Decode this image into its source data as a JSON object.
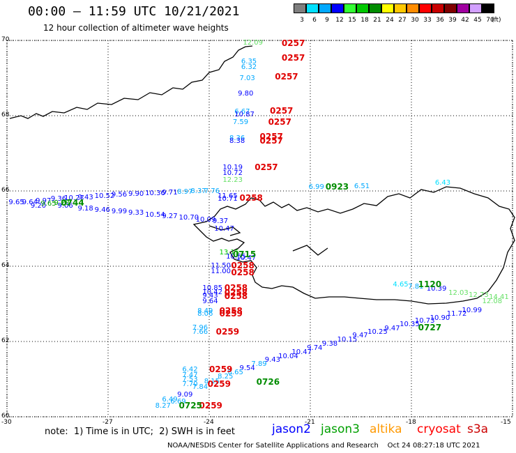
{
  "header": {
    "title": "00:00 – 11:59 UTC 10/21/2021",
    "subtitle": "12 hour collection of altimeter wave heights"
  },
  "color_scale": {
    "unit": "(ft)",
    "bins": [
      {
        "label": "3",
        "color": "#7f7f7f"
      },
      {
        "label": "6",
        "color": "#00e0ff"
      },
      {
        "label": "9",
        "color": "#00a8ff"
      },
      {
        "label": "12",
        "color": "#0000ff"
      },
      {
        "label": "15",
        "color": "#33ff33"
      },
      {
        "label": "18",
        "color": "#00c800"
      },
      {
        "label": "21",
        "color": "#008c00"
      },
      {
        "label": "24",
        "color": "#ffff00"
      },
      {
        "label": "27",
        "color": "#ffc800"
      },
      {
        "label": "30",
        "color": "#ff8c00"
      },
      {
        "label": "33",
        "color": "#ff0000"
      },
      {
        "label": "36",
        "color": "#c80000"
      },
      {
        "label": "39",
        "color": "#800000"
      },
      {
        "label": "42",
        "color": "#a000a0"
      },
      {
        "label": "45",
        "color": "#d2a0ff"
      },
      {
        "label": "70",
        "color": "#000000"
      }
    ]
  },
  "axes": {
    "lat_labels": [
      "70",
      "68",
      "66",
      "64",
      "62",
      "60"
    ],
    "lon_labels": [
      "-30",
      "-27",
      "-24",
      "-21",
      "-18",
      "-15"
    ]
  },
  "footer": {
    "note": "note:  1) Time is in UTC;  2) SWH is in feet",
    "legend": [
      {
        "name": "jason2",
        "color": "#0000ff"
      },
      {
        "name": "jason3",
        "color": "#00a000"
      },
      {
        "name": "altika",
        "color": "#ff9900"
      },
      {
        "name": "cryosat",
        "color": "#ff0000"
      },
      {
        "name": "s3a",
        "color": "#cc0000"
      }
    ],
    "credit": "NOAA/NESDIS Center for Satellite Applications and Research    Oct 24 08:27:18 UTC 2021"
  },
  "observations": [
    {
      "t": "12.09",
      "c": "#66e066",
      "lon": -23.0,
      "lat": 69.93
    },
    {
      "t": "6.35",
      "c": "#00a8ff",
      "lon": -23.05,
      "lat": 69.43
    },
    {
      "t": "6.32",
      "c": "#00a8ff",
      "lon": -23.05,
      "lat": 69.28
    },
    {
      "t": "7.03",
      "c": "#00a8ff",
      "lon": -23.1,
      "lat": 68.98
    },
    {
      "t": "9.80",
      "c": "#0000ff",
      "lon": -23.15,
      "lat": 68.58
    },
    {
      "t": "6.67",
      "c": "#00a8ff",
      "lon": -23.25,
      "lat": 68.1
    },
    {
      "t": "10.87",
      "c": "#0000ff",
      "lon": -23.25,
      "lat": 68.01
    },
    {
      "t": "7.59",
      "c": "#00a8ff",
      "lon": -23.3,
      "lat": 67.82
    },
    {
      "t": "8.36",
      "c": "#00a8ff",
      "lon": -23.4,
      "lat": 67.38
    },
    {
      "t": "8.38",
      "c": "#0000ff",
      "lon": -23.4,
      "lat": 67.32
    },
    {
      "t": "10.19",
      "c": "#0000ff",
      "lon": -23.6,
      "lat": 66.62
    },
    {
      "t": "10.72",
      "c": "#0000ff",
      "lon": -23.6,
      "lat": 66.47
    },
    {
      "t": "12.23",
      "c": "#66e066",
      "lon": -23.6,
      "lat": 66.27
    },
    {
      "t": "11.65",
      "c": "#0000ff",
      "lon": -23.75,
      "lat": 65.85
    },
    {
      "t": "10.71",
      "c": "#0000ff",
      "lon": -23.75,
      "lat": 65.78
    },
    {
      "t": "10.47",
      "c": "#0000ff",
      "lon": -23.85,
      "lat": 64.98
    },
    {
      "t": "13.15",
      "c": "#00c800",
      "lon": -23.7,
      "lat": 64.35
    },
    {
      "t": "10.55",
      "c": "#0000ff",
      "lon": -23.5,
      "lat": 64.25
    },
    {
      "t": "10.47",
      "c": "#0000ff",
      "lon": -23.2,
      "lat": 64.2
    },
    {
      "t": "11.50",
      "c": "#0000ff",
      "lon": -23.95,
      "lat": 64.0
    },
    {
      "t": "11.00",
      "c": "#0000ff",
      "lon": -23.95,
      "lat": 63.85
    },
    {
      "t": "10.85",
      "c": "#0000ff",
      "lon": -24.2,
      "lat": 63.4
    },
    {
      "t": "10.42",
      "c": "#0000ff",
      "lon": -24.2,
      "lat": 63.3
    },
    {
      "t": "9.43",
      "c": "#0000ff",
      "lon": -24.2,
      "lat": 63.2
    },
    {
      "t": "9.64",
      "c": "#0000ff",
      "lon": -24.2,
      "lat": 63.05
    },
    {
      "t": "8.49",
      "c": "#00a8ff",
      "lon": -24.35,
      "lat": 62.8
    },
    {
      "t": "8.06",
      "c": "#00a8ff",
      "lon": -24.35,
      "lat": 62.72
    },
    {
      "t": "7.96",
      "c": "#00a8ff",
      "lon": -24.5,
      "lat": 62.35
    },
    {
      "t": "7.66",
      "c": "#00a8ff",
      "lon": -24.5,
      "lat": 62.25
    },
    {
      "t": "6.42",
      "c": "#00a8ff",
      "lon": -24.8,
      "lat": 61.25
    },
    {
      "t": "7.47",
      "c": "#00a8ff",
      "lon": -24.8,
      "lat": 61.1
    },
    {
      "t": "7.53",
      "c": "#00a8ff",
      "lon": -24.8,
      "lat": 60.98
    },
    {
      "t": "7.70",
      "c": "#00a8ff",
      "lon": -24.8,
      "lat": 60.85
    },
    {
      "t": "9.09",
      "c": "#0000ff",
      "lon": -24.95,
      "lat": 60.58
    },
    {
      "t": "6.49",
      "c": "#00a8ff",
      "lon": -25.4,
      "lat": 60.45
    },
    {
      "t": "6.69",
      "c": "#00a8ff",
      "lon": -25.15,
      "lat": 60.38
    },
    {
      "t": "8.27",
      "c": "#00a8ff",
      "lon": -25.6,
      "lat": 60.28
    },
    {
      "t": "9.65",
      "c": "#0000ff",
      "lon": -29.95,
      "lat": 65.68
    },
    {
      "t": "9.64",
      "c": "#0000ff",
      "lon": -29.55,
      "lat": 65.68
    },
    {
      "t": "9.97",
      "c": "#0000ff",
      "lon": -29.15,
      "lat": 65.72
    },
    {
      "t": "9.36",
      "c": "#0000ff",
      "lon": -28.7,
      "lat": 65.78
    },
    {
      "t": "10.27",
      "c": "#0000ff",
      "lon": -28.3,
      "lat": 65.8
    },
    {
      "t": "9.43",
      "c": "#0000ff",
      "lon": -27.9,
      "lat": 65.82
    },
    {
      "t": "10.52",
      "c": "#0000ff",
      "lon": -27.4,
      "lat": 65.85
    },
    {
      "t": "9.56",
      "c": "#0000ff",
      "lon": -26.9,
      "lat": 65.88
    },
    {
      "t": "9.90",
      "c": "#0000ff",
      "lon": -26.4,
      "lat": 65.9
    },
    {
      "t": "10.36",
      "c": "#0000ff",
      "lon": -25.9,
      "lat": 65.93
    },
    {
      "t": "9.71",
      "c": "#0000ff",
      "lon": -25.4,
      "lat": 65.95
    },
    {
      "t": "8.97",
      "c": "#00a8ff",
      "lon": -24.95,
      "lat": 65.97
    },
    {
      "t": "8.37",
      "c": "#00a8ff",
      "lon": -24.55,
      "lat": 65.98
    },
    {
      "t": "7.76",
      "c": "#00a8ff",
      "lon": -24.15,
      "lat": 65.98
    },
    {
      "t": "9.20",
      "c": "#0000ff",
      "lon": -29.3,
      "lat": 65.6
    },
    {
      "t": "9.06",
      "c": "#0000ff",
      "lon": -28.5,
      "lat": 65.6
    },
    {
      "t": "9.18",
      "c": "#0000ff",
      "lon": -27.9,
      "lat": 65.52
    },
    {
      "t": "9.46",
      "c": "#0000ff",
      "lon": -27.4,
      "lat": 65.48
    },
    {
      "t": "9.99",
      "c": "#0000ff",
      "lon": -26.9,
      "lat": 65.44
    },
    {
      "t": "9.33",
      "c": "#0000ff",
      "lon": -26.4,
      "lat": 65.4
    },
    {
      "t": "10.54",
      "c": "#0000ff",
      "lon": -25.9,
      "lat": 65.36
    },
    {
      "t": "9.27",
      "c": "#0000ff",
      "lon": -25.4,
      "lat": 65.32
    },
    {
      "t": "10.70",
      "c": "#0000ff",
      "lon": -24.9,
      "lat": 65.28
    },
    {
      "t": "10.09",
      "c": "#0000ff",
      "lon": -24.4,
      "lat": 65.23
    },
    {
      "t": "9.37",
      "c": "#0000ff",
      "lon": -23.9,
      "lat": 65.18
    },
    {
      "t": "9.65",
      "c": "#00a000",
      "lon": -29.0,
      "lat": 65.64
    },
    {
      "t": "9.28",
      "c": "#00a000",
      "lon": -28.6,
      "lat": 65.66
    },
    {
      "t": "6.99",
      "c": "#00a8ff",
      "lon": -21.05,
      "lat": 66.1
    },
    {
      "t": "6.51",
      "c": "#00a8ff",
      "lon": -19.7,
      "lat": 66.12
    },
    {
      "t": "6.43",
      "c": "#00e0ff",
      "lon": -17.3,
      "lat": 66.2
    },
    {
      "t": "4.65",
      "c": "#00e0ff",
      "lon": -18.55,
      "lat": 63.5
    },
    {
      "t": "7.81",
      "c": "#00a8ff",
      "lon": -18.1,
      "lat": 63.44
    },
    {
      "t": "10.39",
      "c": "#0000ff",
      "lon": -17.55,
      "lat": 63.38
    },
    {
      "t": "12.03",
      "c": "#66e066",
      "lon": -16.9,
      "lat": 63.28
    },
    {
      "t": "12.73",
      "c": "#66e066",
      "lon": -16.3,
      "lat": 63.22
    },
    {
      "t": "14.41",
      "c": "#66e066",
      "lon": -15.7,
      "lat": 63.17
    },
    {
      "t": "12.08",
      "c": "#66e066",
      "lon": -15.9,
      "lat": 63.05
    },
    {
      "t": "10.99",
      "c": "#0000ff",
      "lon": -16.5,
      "lat": 62.82
    },
    {
      "t": "11.72",
      "c": "#0000ff",
      "lon": -16.95,
      "lat": 62.72
    },
    {
      "t": "10.90",
      "c": "#0000ff",
      "lon": -17.45,
      "lat": 62.62
    },
    {
      "t": "10.73",
      "c": "#0000ff",
      "lon": -17.9,
      "lat": 62.54
    },
    {
      "t": "10.35",
      "c": "#0000ff",
      "lon": -18.35,
      "lat": 62.44
    },
    {
      "t": "9.47",
      "c": "#0000ff",
      "lon": -18.8,
      "lat": 62.34
    },
    {
      "t": "10.25",
      "c": "#0000ff",
      "lon": -19.3,
      "lat": 62.24
    },
    {
      "t": "9.47",
      "c": "#0000ff",
      "lon": -19.75,
      "lat": 62.14
    },
    {
      "t": "10.15",
      "c": "#0000ff",
      "lon": -20.2,
      "lat": 62.04
    },
    {
      "t": "9.38",
      "c": "#0000ff",
      "lon": -20.65,
      "lat": 61.92
    },
    {
      "t": "9.74",
      "c": "#0000ff",
      "lon": -21.1,
      "lat": 61.82
    },
    {
      "t": "10.47",
      "c": "#0000ff",
      "lon": -21.55,
      "lat": 61.7
    },
    {
      "t": "10.04",
      "c": "#0000ff",
      "lon": -21.95,
      "lat": 61.6
    },
    {
      "t": "9.43",
      "c": "#0000ff",
      "lon": -22.35,
      "lat": 61.5
    },
    {
      "t": "7.89",
      "c": "#00a8ff",
      "lon": -22.75,
      "lat": 61.38
    },
    {
      "t": "9.54",
      "c": "#0000ff",
      "lon": -23.1,
      "lat": 61.28
    },
    {
      "t": "8.65",
      "c": "#00a8ff",
      "lon": -23.45,
      "lat": 61.16
    },
    {
      "t": "8.25",
      "c": "#00a8ff",
      "lon": -23.75,
      "lat": 61.06
    },
    {
      "t": "8.15",
      "c": "#00a8ff",
      "lon": -24.15,
      "lat": 60.92
    },
    {
      "t": "7.84",
      "c": "#00a8ff",
      "lon": -24.5,
      "lat": 60.78
    },
    {
      "t": "0257",
      "c": "#e00000",
      "lon": -21.85,
      "lat": 69.9,
      "time": true
    },
    {
      "t": "0257",
      "c": "#e00000",
      "lon": -21.85,
      "lat": 69.52,
      "time": true
    },
    {
      "t": "0257",
      "c": "#e00000",
      "lon": -22.05,
      "lat": 69.02,
      "time": true
    },
    {
      "t": "0257",
      "c": "#e00000",
      "lon": -22.2,
      "lat": 68.12,
      "time": true
    },
    {
      "t": "0257",
      "c": "#e00000",
      "lon": -22.25,
      "lat": 67.82,
      "time": true
    },
    {
      "t": "0257",
      "c": "#e00000",
      "lon": -22.5,
      "lat": 67.42,
      "time": true
    },
    {
      "t": "0257",
      "c": "#e00000",
      "lon": -22.5,
      "lat": 67.32,
      "time": true
    },
    {
      "t": "0257",
      "c": "#e00000",
      "lon": -22.65,
      "lat": 66.62,
      "time": true
    },
    {
      "t": "0258",
      "c": "#e00000",
      "lon": -23.1,
      "lat": 65.8,
      "time": true
    },
    {
      "t": "0258",
      "c": "#e00000",
      "lon": -23.35,
      "lat": 64.0,
      "time": true
    },
    {
      "t": "0258",
      "c": "#e00000",
      "lon": -23.35,
      "lat": 63.82,
      "time": true
    },
    {
      "t": "0258",
      "c": "#e00000",
      "lon": -23.55,
      "lat": 63.4,
      "time": true
    },
    {
      "t": "0258",
      "c": "#e00000",
      "lon": -23.55,
      "lat": 63.28,
      "time": true
    },
    {
      "t": "0258",
      "c": "#e00000",
      "lon": -23.55,
      "lat": 63.18,
      "time": true
    },
    {
      "t": "0258",
      "c": "#e00000",
      "lon": -23.7,
      "lat": 62.8,
      "time": true
    },
    {
      "t": "0259",
      "c": "#e00000",
      "lon": -23.7,
      "lat": 62.72,
      "time": true
    },
    {
      "t": "0259",
      "c": "#e00000",
      "lon": -23.8,
      "lat": 62.25,
      "time": true
    },
    {
      "t": "0259",
      "c": "#e00000",
      "lon": -24.0,
      "lat": 61.25,
      "time": true
    },
    {
      "t": "0259",
      "c": "#e00000",
      "lon": -24.05,
      "lat": 60.85,
      "time": true
    },
    {
      "t": "0259",
      "c": "#e00000",
      "lon": -24.3,
      "lat": 60.28,
      "time": true
    },
    {
      "t": "0923",
      "c": "#008c00",
      "lon": -20.55,
      "lat": 66.1,
      "time": true
    },
    {
      "t": "1120",
      "c": "#008c00",
      "lon": -17.8,
      "lat": 63.5,
      "time": true
    },
    {
      "t": "0727",
      "c": "#008c00",
      "lon": -17.8,
      "lat": 62.35,
      "time": true
    },
    {
      "t": "0726",
      "c": "#008c00",
      "lon": -22.6,
      "lat": 60.9,
      "time": true
    },
    {
      "t": "0725",
      "c": "#008c00",
      "lon": -24.9,
      "lat": 60.28,
      "time": true
    },
    {
      "t": "0744",
      "c": "#008c00",
      "lon": -28.4,
      "lat": 65.66,
      "time": true
    },
    {
      "t": "0715",
      "c": "#008c00",
      "lon": -23.3,
      "lat": 64.3,
      "time": true
    }
  ]
}
